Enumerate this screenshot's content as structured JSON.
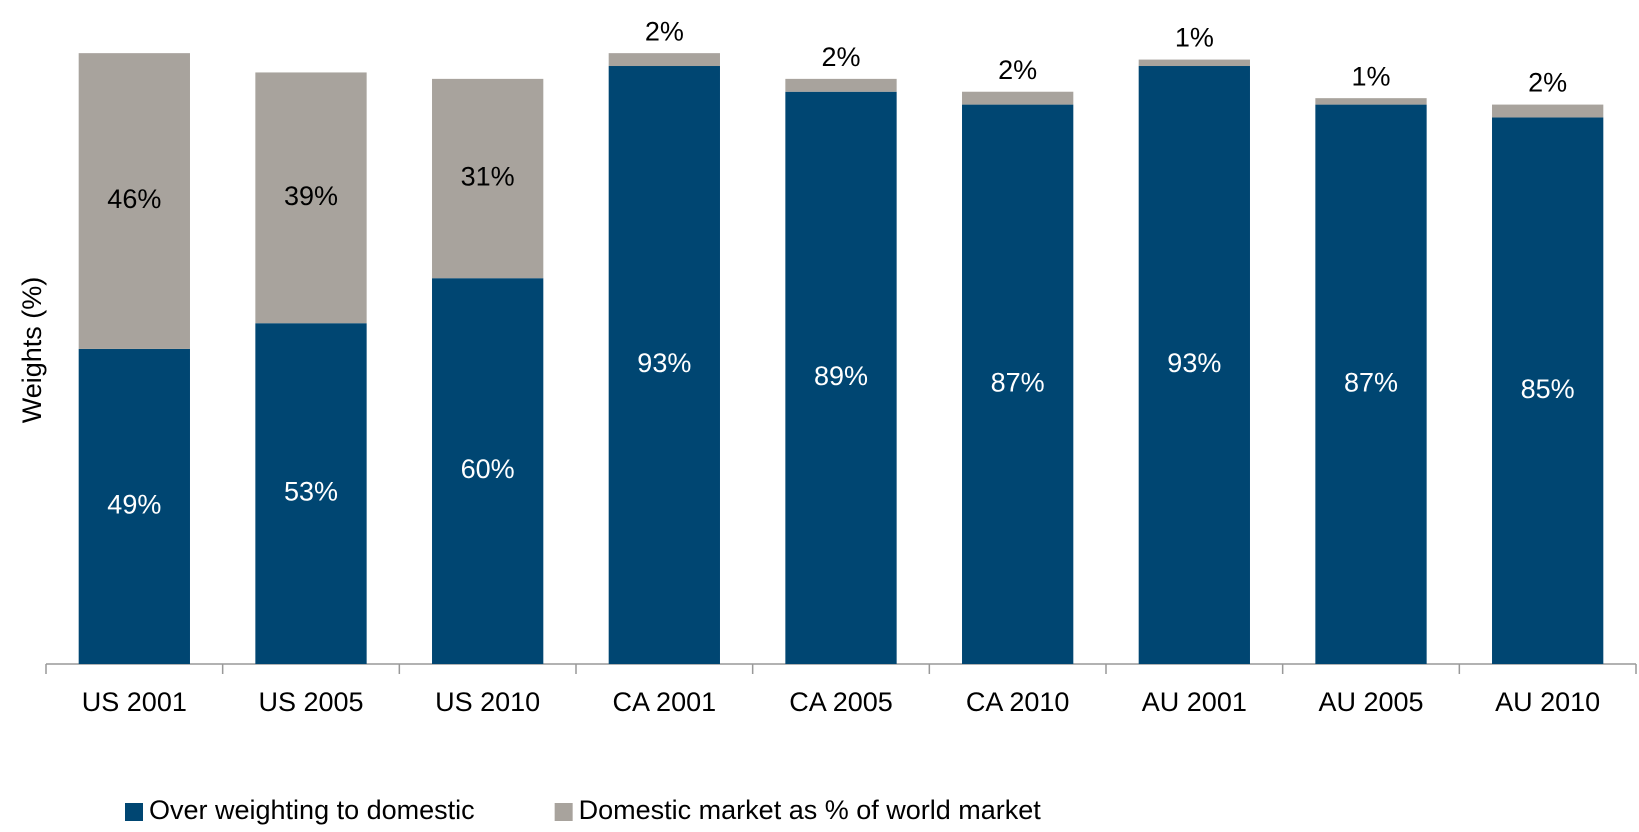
{
  "chart_data": {
    "type": "stacked_bar",
    "y_label": "Weights (%)",
    "categories": [
      "US 2001",
      "US 2005",
      "US 2010",
      "CA 2001",
      "CA 2005",
      "CA 2010",
      "AU 2001",
      "AU 2005",
      "AU 2010"
    ],
    "series": [
      {
        "name": "Over weighting to domestic",
        "color": "#004672",
        "values": [
          49,
          53,
          60,
          93,
          89,
          87,
          93,
          87,
          85
        ],
        "value_labels": [
          "49%",
          "53%",
          "60%",
          "93%",
          "89%",
          "87%",
          "93%",
          "87%",
          "85%"
        ]
      },
      {
        "name": "Domestic market as % of world market",
        "color": "#a8a39d",
        "values": [
          46,
          39,
          31,
          2,
          2,
          2,
          1,
          1,
          2
        ],
        "value_labels": [
          "46%",
          "39%",
          "31%",
          "2%",
          "2%",
          "2%",
          "1%",
          "1%",
          "2%"
        ]
      }
    ],
    "ylim": [
      0,
      100
    ]
  }
}
